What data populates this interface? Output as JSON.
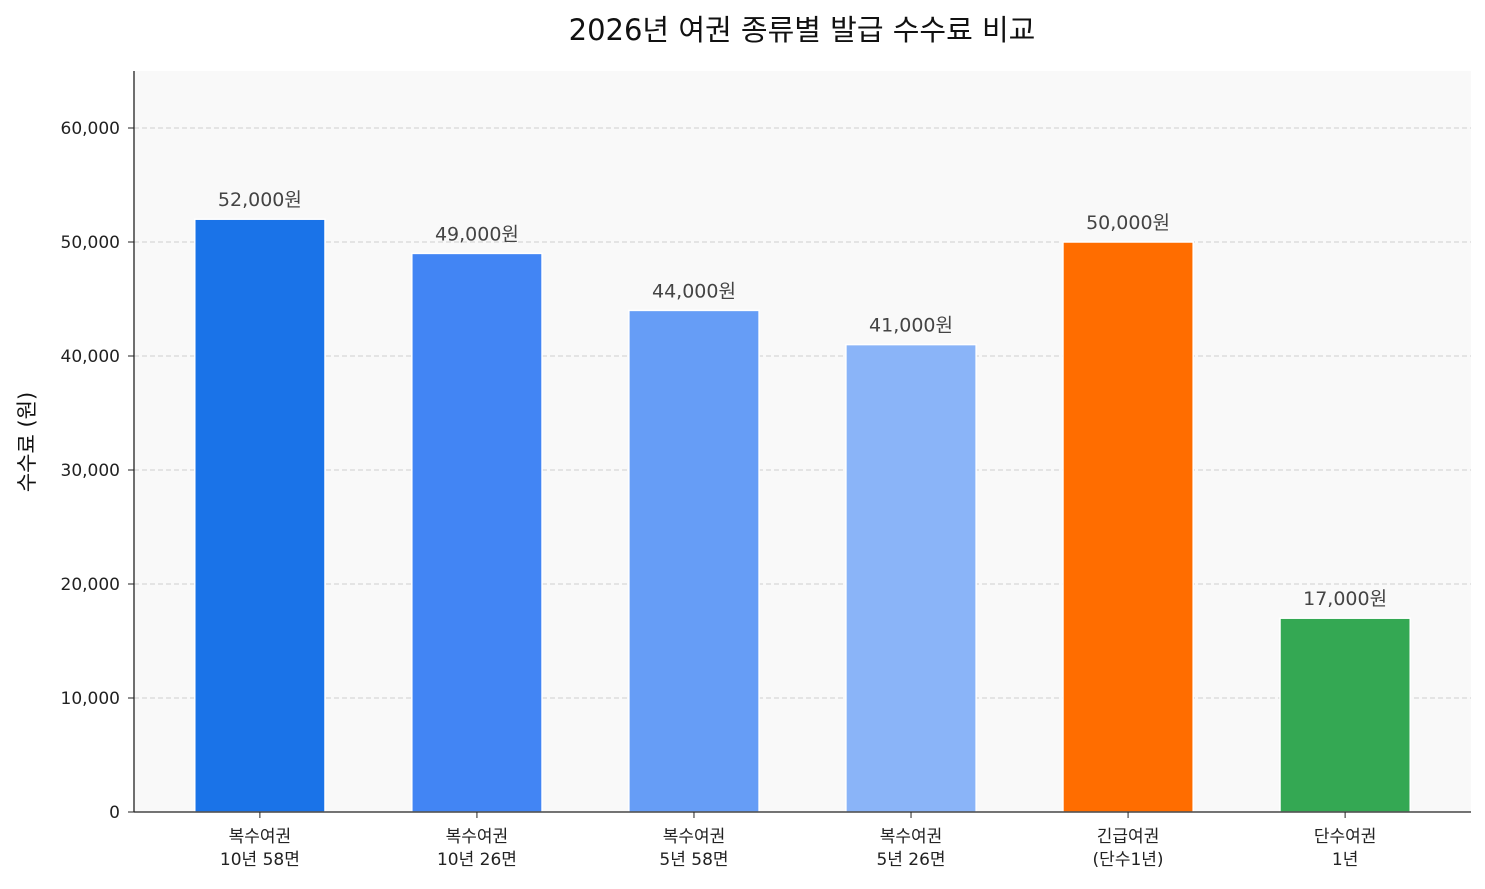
{
  "chart_data": {
    "type": "bar",
    "title": "2026년 여권 종류별 발급 수수료 비교",
    "xlabel": "",
    "ylabel": "수수료 (원)",
    "ylim": [
      0,
      65000
    ],
    "yticks": [
      0,
      10000,
      20000,
      30000,
      40000,
      50000,
      60000
    ],
    "ytick_labels": [
      "0",
      "10,000",
      "20,000",
      "30,000",
      "40,000",
      "50,000",
      "60,000"
    ],
    "grid": "y-dashed",
    "categories": [
      [
        "복수여권",
        "10년 58면"
      ],
      [
        "복수여권",
        "10년 26면"
      ],
      [
        "복수여권",
        "5년 58면"
      ],
      [
        "복수여권",
        "5년 26면"
      ],
      [
        "긴급여권",
        "(단수1년)"
      ],
      [
        "단수여권",
        "1년"
      ]
    ],
    "values": [
      52000,
      49000,
      44000,
      41000,
      50000,
      17000
    ],
    "data_labels": [
      "52,000원",
      "49,000원",
      "44,000원",
      "41,000원",
      "50,000원",
      "17,000원"
    ],
    "colors": [
      "#1a73e8",
      "#4285f4",
      "#669df6",
      "#8ab4f8",
      "#ff6d00",
      "#34a853"
    ],
    "background": "#f9f9f9"
  }
}
